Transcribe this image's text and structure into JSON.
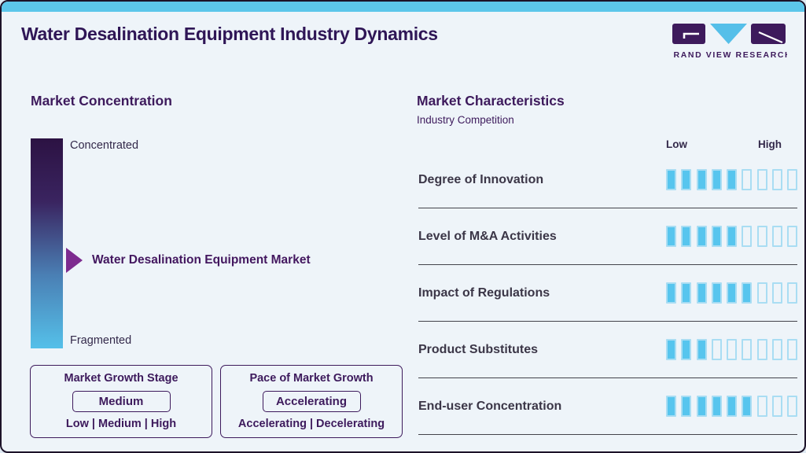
{
  "page": {
    "title": "Water Desalination Equipment Industry Dynamics"
  },
  "logo": {
    "brand": "GRAND VIEW RESEARCH"
  },
  "market_concentration": {
    "title": "Market Concentration",
    "scale_top": "Concentrated",
    "scale_bottom": "Fragmented",
    "marker_label": "Water Desalination Equipment Market",
    "marker_position_pct": 58,
    "growth_stage": {
      "title": "Market Growth Stage",
      "selected": "Medium",
      "options_label": "Low | Medium | High"
    },
    "growth_pace": {
      "title": "Pace of Market Growth",
      "selected": "Accelerating",
      "options_label": "Accelerating | Decelerating"
    }
  },
  "market_characteristics": {
    "title": "Market Characteristics",
    "subtitle": "Industry Competition",
    "scale_low": "Low",
    "scale_high": "High",
    "rows": [
      {
        "label": "Degree of Innovation",
        "filled": 5,
        "total": 9
      },
      {
        "label": "Level of M&A Activities",
        "filled": 5,
        "total": 9
      },
      {
        "label": "Impact of Regulations",
        "filled": 6,
        "total": 9
      },
      {
        "label": "Product Substitutes",
        "filled": 3,
        "total": 9
      },
      {
        "label": "End-user Concentration",
        "filled": 6,
        "total": 9
      }
    ]
  },
  "chart_data": {
    "type": "bar",
    "title": "Market Characteristics — Industry Competition",
    "categories": [
      "Degree of Innovation",
      "Level of M&A Activities",
      "Impact of Regulations",
      "Product Substitutes",
      "End-user Concentration"
    ],
    "values": [
      5,
      5,
      6,
      3,
      6
    ],
    "scale": {
      "min_label": "Low",
      "max_label": "High",
      "max_segments": 9
    },
    "xlabel": "",
    "ylabel": "",
    "colors": {
      "filled": "#57c5ee",
      "empty_border": "#a9ddf3"
    }
  },
  "colors": {
    "accent_cyan": "#5cc6ea",
    "brand_purple": "#3d1a5c",
    "arrow_purple": "#7d2b8f",
    "gradient_top": "#2c1243",
    "gradient_bottom": "#55c0e9",
    "background": "#eef4f9"
  }
}
